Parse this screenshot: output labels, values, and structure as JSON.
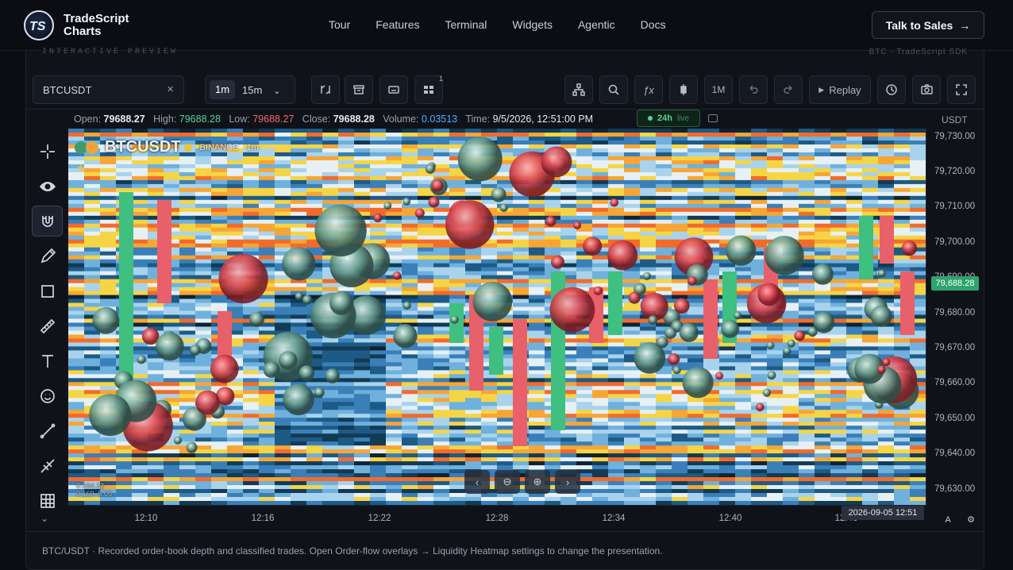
{
  "nav": {
    "brand_line1": "TradeScript",
    "brand_line2": "Charts",
    "links": [
      "Tour",
      "Features",
      "Terminal",
      "Widgets",
      "Agentic",
      "Docs"
    ],
    "cta": "Talk to Sales",
    "cta_icon": "arrow-right-icon"
  },
  "preview": {
    "label": "INTERACTIVE PREVIEW",
    "right_label": "BTC · TradeScript SDK"
  },
  "toolbar": {
    "symbol_value": "BTCUSDT",
    "timeframe_active": "1m",
    "timeframe_select": "15m",
    "indicator_count": "1",
    "interval_label": "1M",
    "replay_label": "Replay"
  },
  "ohlc": {
    "open_label": "Open:",
    "open": "79688.27",
    "high_label": "High:",
    "high": "79688.28",
    "low_label": "Low:",
    "low": "79688.27",
    "close_label": "Close:",
    "close": "79688.28",
    "volume_label": "Volume:",
    "volume": "0.03513",
    "time_label": "Time:",
    "time": "9/5/2026, 12:51:00 PM",
    "live_window": "24h",
    "live_text": "live",
    "currency": "USDT"
  },
  "chart": {
    "pair": "BTCUSDT",
    "exchange": "BINANCE",
    "interval": "1m",
    "legend_small_1": "0.034.32",
    "legend_small_2": "0.169–5.05",
    "price_ticks": [
      "79,730.00",
      "79,720.00",
      "79,710.00",
      "79,700.00",
      "79,690.00",
      "79,680.00",
      "79,670.00",
      "79,660.00",
      "79,650.00",
      "79,640.00",
      "79,630.00"
    ],
    "current_price": "79,688.28",
    "time_ticks": [
      "12:10",
      "12:16",
      "12:22",
      "12:28",
      "12:34",
      "12:40",
      "12:46"
    ],
    "crosshair_time": "2026-09-05 12:51",
    "auto_label": "A",
    "colors": {
      "up": "#3fbf80",
      "down": "#e8606a",
      "heat_hot": "#f26b2a",
      "heat_warm": "#f5d545",
      "heat_cool": "#3a7fb8"
    }
  },
  "footer": {
    "text": "BTC/USDT · Recorded order-book depth and classified trades. Open Order-flow overlays → Liquidity Heatmap settings to change the presentation."
  }
}
